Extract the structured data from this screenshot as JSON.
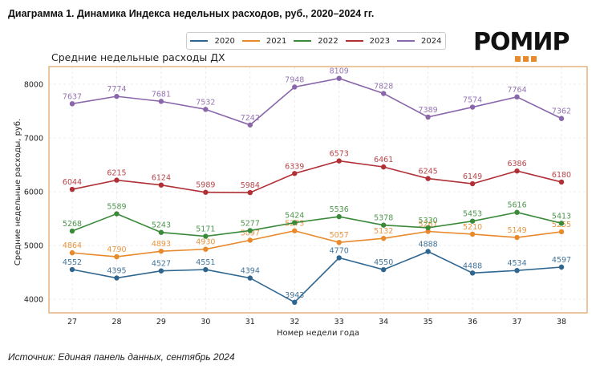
{
  "doc_title": "Диаграмма 1. Динамика Индекса недельных расходов, руб., 2020–2024 гг.",
  "source": "Источник: Единая панель данных, сентябрь 2024",
  "logo": {
    "text": "РОМИР",
    "accent": "#e8892b"
  },
  "chart_data": {
    "type": "line",
    "title": "Средние недельные расходы ДХ",
    "xlabel": "Номер недели года",
    "ylabel": "Средние недельные расходы, руб.",
    "x": [
      27,
      28,
      29,
      30,
      31,
      32,
      33,
      34,
      35,
      36,
      37,
      38
    ],
    "ylim": [
      3700,
      8250
    ],
    "yticks": [
      4000,
      5000,
      6000,
      7000,
      8000
    ],
    "grid": true,
    "legend_position": "top-center",
    "frame_color": "#e0a96d",
    "series": [
      {
        "name": "2020",
        "color": "#2f6690",
        "values": [
          4552,
          4395,
          4527,
          4551,
          4394,
          3943,
          4770,
          4550,
          4888,
          4488,
          4534,
          4597
        ]
      },
      {
        "name": "2021",
        "color": "#e8892b",
        "values": [
          4864,
          4790,
          4893,
          4930,
          5097,
          5273,
          5057,
          5132,
          5261,
          5210,
          5149,
          5255
        ]
      },
      {
        "name": "2022",
        "color": "#3a8a3a",
        "values": [
          5268,
          5589,
          5243,
          5171,
          5277,
          5424,
          5536,
          5378,
          5330,
          5453,
          5616,
          5413
        ]
      },
      {
        "name": "2023",
        "color": "#b03036",
        "values": [
          6044,
          6215,
          6124,
          5989,
          5984,
          6339,
          6573,
          6461,
          6245,
          6149,
          6386,
          6180
        ]
      },
      {
        "name": "2024",
        "color": "#8a66aa",
        "values": [
          7637,
          7774,
          7681,
          7532,
          7242,
          7948,
          8109,
          7828,
          7389,
          7574,
          7764,
          7362
        ]
      }
    ]
  }
}
